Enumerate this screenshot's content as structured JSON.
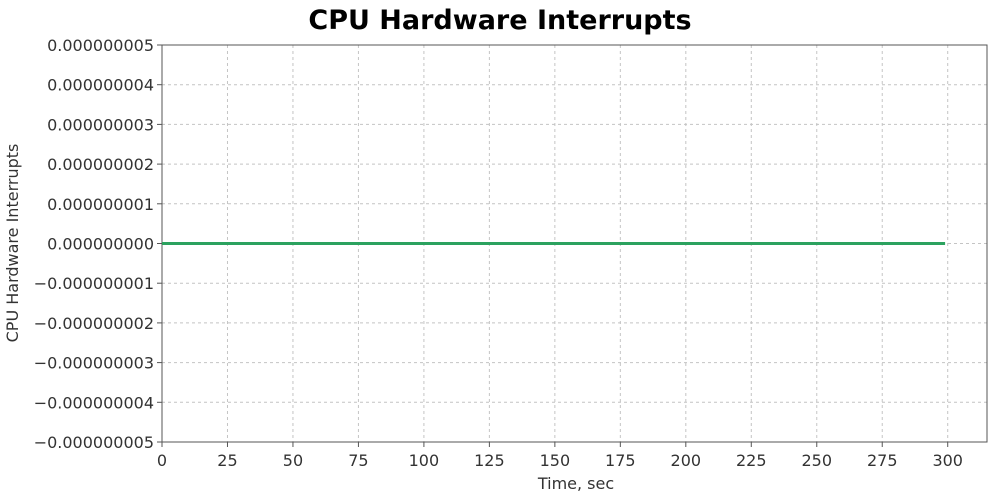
{
  "chart_data": {
    "type": "line",
    "title": "CPU Hardware Interrupts",
    "xlabel": "Time, sec",
    "ylabel": "CPU Hardware Interrupts",
    "xlim": [
      0,
      315
    ],
    "ylim": [
      -5e-09,
      5e-09
    ],
    "x_ticks": [
      0,
      25,
      50,
      75,
      100,
      125,
      150,
      175,
      200,
      225,
      250,
      275,
      300
    ],
    "x_tick_labels": [
      "0",
      "25",
      "50",
      "75",
      "100",
      "125",
      "150",
      "175",
      "200",
      "225",
      "250",
      "275",
      "300"
    ],
    "y_ticks": [
      5e-09,
      4e-09,
      3e-09,
      2e-09,
      1e-09,
      0,
      -1e-09,
      -2e-09,
      -3e-09,
      -4e-09,
      -5e-09
    ],
    "y_tick_labels": [
      "0.000000005",
      "0.000000004",
      "0.000000003",
      "0.000000002",
      "0.000000001",
      "0.000000000",
      "−0.000000001",
      "−0.000000002",
      "−0.000000003",
      "−0.000000004",
      "−0.000000005"
    ],
    "grid": true,
    "series": [
      {
        "color": "#2ca25f",
        "x": [
          0,
          299
        ],
        "y": [
          0,
          0
        ]
      }
    ]
  }
}
